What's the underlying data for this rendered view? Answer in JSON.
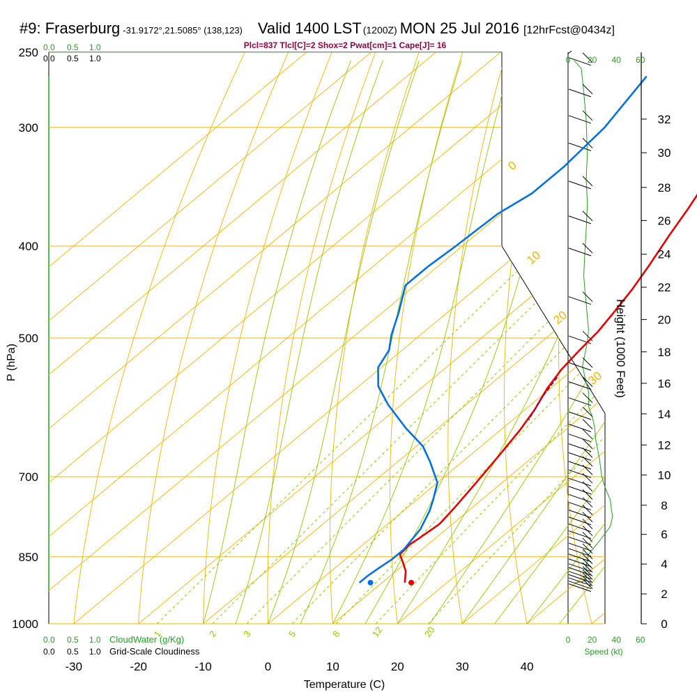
{
  "header": {
    "station": "#9: Fraserburg",
    "coords": "-31.9172°,21.5085° (138,123)",
    "valid": "Valid 1400 LST",
    "utc": "(1200Z)",
    "date": "MON 25 Jul 2016",
    "forecast": "[12hrFcst@0434z]"
  },
  "indices": "Plcl=837 Tlcl[C]=2 Shox=2 Pwat[cm]=1 Cape[J]= 16",
  "labels": {
    "pressure_axis": "P (hPa)",
    "temperature_axis": "Temperature (C)",
    "height_axis": "Height (1000 Feet)",
    "cloudwater": "CloudWater (g/Kg)",
    "cloudiness": "Grid-Scale Cloudiness",
    "speed": "Speed (kt)"
  },
  "cloud_scale_ticks": [
    "0.0",
    "0.5",
    "1.0"
  ],
  "colors": {
    "temperature": "#e00000",
    "dewpoint": "#0070e0",
    "isotherms": "#f0b400",
    "dry_adiabats": "#f0b400",
    "moist_adiabats": "#90c800",
    "mixing_ratio": "#90c800",
    "wind_speed": "#20a020",
    "parcel": "#800060",
    "indices_text": "#900040"
  },
  "chart_data": {
    "type": "line",
    "subtype": "skew-T log-P",
    "xlabel": "Temperature (C)",
    "ylabel": "P (hPa)",
    "xlim": [
      -35,
      40
    ],
    "ylim": [
      1000,
      250
    ],
    "y_scale": "log",
    "x_ticks": [
      -30,
      -20,
      -10,
      0,
      10,
      20,
      30,
      40
    ],
    "y_ticks": [
      250,
      300,
      400,
      500,
      700,
      850,
      1000
    ],
    "isotherm_labels": [
      {
        "value": 10,
        "text": "10"
      },
      {
        "value": 0,
        "text": "0"
      },
      {
        "value": -10,
        "text": "-10"
      },
      {
        "value": -20,
        "text": "-20"
      },
      {
        "value": -30,
        "text": "-30"
      }
    ],
    "moist_adiabat_labels": [
      {
        "value": 0,
        "text": "0"
      },
      {
        "value": 10,
        "text": "10"
      },
      {
        "value": 20,
        "text": "20"
      },
      {
        "value": 30,
        "text": "30"
      }
    ],
    "mixing_ratio_labels": [
      {
        "value": 1,
        "text": "1"
      },
      {
        "value": 2,
        "text": "2"
      },
      {
        "value": 3,
        "text": "3"
      },
      {
        "value": 5,
        "text": "5"
      },
      {
        "value": 8,
        "text": "8"
      },
      {
        "value": 12,
        "text": "12"
      },
      {
        "value": 20,
        "text": "20"
      }
    ],
    "series": [
      {
        "name": "Temperature",
        "points": [
          [
            13.5,
            905
          ],
          [
            11.5,
            880
          ],
          [
            9.5,
            862
          ],
          [
            7.5,
            845
          ],
          [
            7.2,
            825
          ],
          [
            7.5,
            812
          ],
          [
            8,
            785
          ],
          [
            7.3,
            755
          ],
          [
            6,
            710
          ],
          [
            4.5,
            665
          ],
          [
            3,
            625
          ],
          [
            1.5,
            595
          ],
          [
            -0.5,
            565
          ],
          [
            -1.8,
            540
          ],
          [
            -2.6,
            515
          ],
          [
            -3.2,
            492
          ],
          [
            -4.3,
            470
          ],
          [
            -5.7,
            445
          ],
          [
            -7.5,
            420
          ],
          [
            -10,
            390
          ],
          [
            -12,
            366
          ],
          [
            -14,
            345
          ],
          [
            -15.5,
            323
          ],
          [
            -16.5,
            303
          ],
          [
            -14.5,
            290
          ],
          [
            -13.2,
            283
          ],
          [
            -10.8,
            270
          ]
        ]
      },
      {
        "name": "Dewpoint",
        "points": [
          [
            6.5,
            905
          ],
          [
            6.5,
            890
          ],
          [
            6.8,
            873
          ],
          [
            7.2,
            855
          ],
          [
            7.2,
            835
          ],
          [
            6,
            795
          ],
          [
            4,
            760
          ],
          [
            2.5,
            740
          ],
          [
            0,
            710
          ],
          [
            -5,
            675
          ],
          [
            -9,
            650
          ],
          [
            -15,
            622
          ],
          [
            -22,
            588
          ],
          [
            -27,
            562
          ],
          [
            -30.5,
            537
          ],
          [
            -32,
            515
          ],
          [
            -34.5,
            496
          ],
          [
            -37.5,
            470
          ],
          [
            -41.5,
            440
          ],
          [
            -41.5,
            420
          ],
          [
            -41,
            400
          ],
          [
            -40.5,
            370
          ],
          [
            -39,
            352
          ],
          [
            -39,
            330
          ],
          [
            -40,
            300
          ],
          [
            -41.5,
            282
          ],
          [
            -43,
            265
          ]
        ]
      }
    ],
    "parcel_path": [
      [
        -1,
        550
      ],
      [
        0.5,
        580
      ],
      [
        2.5,
        610
      ]
    ],
    "surface": {
      "temperature": 14.5,
      "dewpoint": 8.2,
      "pressure": 905
    },
    "height_axis": {
      "label": "Height (1000 Feet)",
      "ticks": [
        {
          "ft": 0,
          "p": 1000
        },
        {
          "ft": 2,
          "p": 930
        },
        {
          "ft": 4,
          "p": 865
        },
        {
          "ft": 6,
          "p": 805
        },
        {
          "ft": 8,
          "p": 750
        },
        {
          "ft": 10,
          "p": 697
        },
        {
          "ft": 12,
          "p": 648
        },
        {
          "ft": 14,
          "p": 601
        },
        {
          "ft": 16,
          "p": 558
        },
        {
          "ft": 18,
          "p": 517
        },
        {
          "ft": 20,
          "p": 478
        },
        {
          "ft": 22,
          "p": 442
        },
        {
          "ft": 24,
          "p": 408
        },
        {
          "ft": 26,
          "p": 376
        },
        {
          "ft": 28,
          "p": 347
        },
        {
          "ft": 30,
          "p": 319
        },
        {
          "ft": 32,
          "p": 294
        }
      ]
    },
    "wind_speed_axis": {
      "label": "Speed (kt)",
      "ticks": [
        0,
        20,
        40,
        60
      ],
      "xlim": [
        0,
        60
      ]
    },
    "wind_speed_profile": [
      [
        6,
        905
      ],
      [
        12,
        903
      ],
      [
        15,
        895
      ],
      [
        15,
        870
      ],
      [
        17,
        845
      ],
      [
        27,
        815
      ],
      [
        35,
        790
      ],
      [
        37,
        770
      ],
      [
        36,
        760
      ],
      [
        35,
        740
      ],
      [
        31,
        720
      ],
      [
        28,
        700
      ],
      [
        26,
        670
      ],
      [
        23,
        640
      ],
      [
        22,
        620
      ],
      [
        20,
        605
      ],
      [
        17,
        590
      ],
      [
        17,
        570
      ],
      [
        14,
        550
      ],
      [
        12,
        535
      ],
      [
        14,
        520
      ],
      [
        16,
        505
      ],
      [
        17,
        490
      ],
      [
        16,
        475
      ],
      [
        15,
        460
      ],
      [
        14,
        445
      ],
      [
        13,
        430
      ],
      [
        14,
        405
      ],
      [
        15,
        385
      ],
      [
        16,
        360
      ],
      [
        15,
        340
      ],
      [
        16,
        320
      ],
      [
        15,
        295
      ],
      [
        13,
        275
      ],
      [
        11,
        260
      ],
      [
        5,
        255
      ]
    ],
    "wind_barbs": [
      {
        "p": 903,
        "speed": 10
      },
      {
        "p": 897,
        "speed": 10
      },
      {
        "p": 890,
        "speed": 10
      },
      {
        "p": 883,
        "speed": 10
      },
      {
        "p": 876,
        "speed": 10
      },
      {
        "p": 868,
        "speed": 10
      },
      {
        "p": 860,
        "speed": 10
      },
      {
        "p": 850,
        "speed": 10
      },
      {
        "p": 840,
        "speed": 10
      },
      {
        "p": 829,
        "speed": 10
      },
      {
        "p": 818,
        "speed": 10
      },
      {
        "p": 806,
        "speed": 10
      },
      {
        "p": 794,
        "speed": 10
      },
      {
        "p": 781,
        "speed": 10
      },
      {
        "p": 768,
        "speed": 10
      },
      {
        "p": 755,
        "speed": 10
      },
      {
        "p": 741,
        "speed": 10
      },
      {
        "p": 727,
        "speed": 10
      },
      {
        "p": 713,
        "speed": 10
      },
      {
        "p": 699,
        "speed": 10
      },
      {
        "p": 685,
        "speed": 10
      },
      {
        "p": 671,
        "speed": 10
      },
      {
        "p": 657,
        "speed": 10
      },
      {
        "p": 643,
        "speed": 10
      },
      {
        "p": 628,
        "speed": 10
      },
      {
        "p": 613,
        "speed": 10
      },
      {
        "p": 595,
        "speed": 10
      },
      {
        "p": 575,
        "speed": 10
      },
      {
        "p": 553,
        "speed": 10
      },
      {
        "p": 528,
        "speed": 10
      },
      {
        "p": 495,
        "speed": 10
      },
      {
        "p": 450,
        "speed": 10
      },
      {
        "p": 400,
        "speed": 10
      },
      {
        "p": 370,
        "speed": 10
      },
      {
        "p": 340,
        "speed": 10
      },
      {
        "p": 310,
        "speed": 10
      },
      {
        "p": 290,
        "speed": 10
      },
      {
        "p": 272,
        "speed": 10
      },
      {
        "p": 252,
        "speed": 5
      }
    ]
  }
}
